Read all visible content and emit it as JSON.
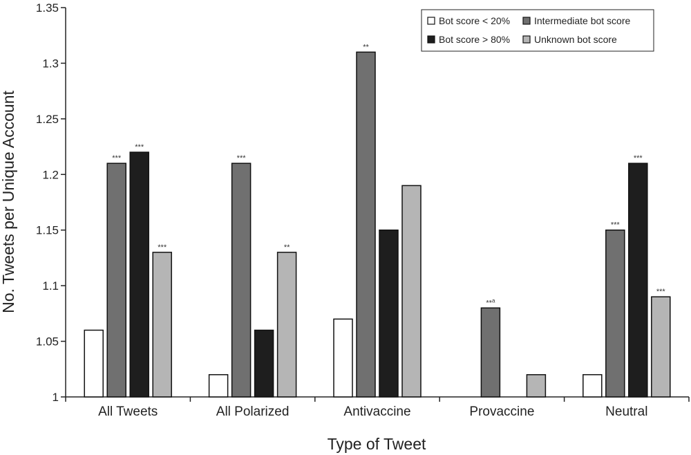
{
  "chart_data": {
    "type": "bar",
    "xlabel": "Type of Tweet",
    "ylabel": "No. Tweets per Unique Account",
    "ylim": [
      1,
      1.35
    ],
    "yticks": [
      "1",
      "1.05",
      "1.1",
      "1.15",
      "1.2",
      "1.25",
      "1.3",
      "1.35"
    ],
    "yticks_values": [
      1,
      1.05,
      1.1,
      1.15,
      1.2,
      1.25,
      1.3,
      1.35
    ],
    "categories": [
      "All Tweets",
      "All Polarized",
      "Antivaccine",
      "Provaccine",
      "Neutral"
    ],
    "series": [
      {
        "name": "Bot score < 20%",
        "color": "#ffffff",
        "values": [
          1.06,
          1.02,
          1.07,
          null,
          1.02
        ],
        "significance": [
          "",
          "",
          "",
          "",
          ""
        ],
        "sig_sup": [
          "",
          "",
          "",
          "",
          ""
        ]
      },
      {
        "name": "Intermediate bot score",
        "color": "#707070",
        "values": [
          1.21,
          1.21,
          1.31,
          1.08,
          1.15
        ],
        "significance": [
          "***",
          "***",
          "**",
          "**",
          "***"
        ],
        "sig_sup": [
          "",
          "",
          "",
          "a",
          ""
        ]
      },
      {
        "name": "Bot score > 80%",
        "color": "#1e1e1e",
        "values": [
          1.22,
          1.06,
          1.15,
          null,
          1.21
        ],
        "significance": [
          "***",
          "",
          "",
          "",
          "***"
        ],
        "sig_sup": [
          "",
          "",
          "",
          "",
          ""
        ]
      },
      {
        "name": "Unknown bot score",
        "color": "#b5b5b5",
        "values": [
          1.13,
          1.13,
          1.19,
          1.02,
          1.09
        ],
        "significance": [
          "***",
          "**",
          "",
          "",
          "***"
        ],
        "sig_sup": [
          "",
          "",
          "",
          "",
          ""
        ]
      }
    ],
    "legend_position": "top-right",
    "grid": false
  }
}
